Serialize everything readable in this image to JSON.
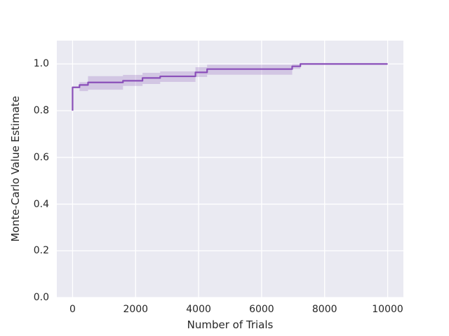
{
  "figure": {
    "background_color": "#ffffff"
  },
  "chart_data": {
    "type": "line",
    "title": "",
    "xlabel": "Number of Trials",
    "ylabel": "Monte-Carlo Value Estimate",
    "xlim": [
      -500,
      10500
    ],
    "ylim": [
      0,
      1.1
    ],
    "grid": true,
    "legend": false,
    "style": {
      "axes_background": "#eaeaf2",
      "grid_color": "#ffffff",
      "text_color": "#262626",
      "line_color": "#8a4fb9",
      "band_color": "#9467bd",
      "band_alpha": 0.28
    },
    "x_ticks": {
      "values": [
        0,
        2000,
        4000,
        6000,
        8000,
        10000
      ],
      "labels": [
        "0",
        "2000",
        "4000",
        "6000",
        "8000",
        "10000"
      ]
    },
    "y_ticks": {
      "values": [
        0.0,
        0.2,
        0.4,
        0.6,
        0.8,
        1.0
      ],
      "labels": [
        "0.0",
        "0.2",
        "0.4",
        "0.6",
        "0.8",
        "1.0"
      ]
    },
    "series": [
      {
        "name": "monte-carlo-value-estimate",
        "kind": "step-line",
        "points": [
          [
            0,
            0.8
          ],
          [
            0,
            0.9
          ],
          [
            220,
            0.9
          ],
          [
            220,
            0.91
          ],
          [
            490,
            0.91
          ],
          [
            490,
            0.921
          ],
          [
            1600,
            0.921
          ],
          [
            1600,
            0.928
          ],
          [
            2220,
            0.928
          ],
          [
            2220,
            0.94
          ],
          [
            2780,
            0.94
          ],
          [
            2780,
            0.947
          ],
          [
            3900,
            0.947
          ],
          [
            3900,
            0.964
          ],
          [
            4270,
            0.964
          ],
          [
            4270,
            0.978
          ],
          [
            6970,
            0.978
          ],
          [
            6970,
            0.99
          ],
          [
            7230,
            0.99
          ],
          [
            7230,
            1.0
          ],
          [
            10000,
            1.0
          ]
        ]
      },
      {
        "name": "confidence-band",
        "kind": "band",
        "upper": [
          [
            220,
            0.922
          ],
          [
            490,
            0.922
          ],
          [
            490,
            0.948
          ],
          [
            1600,
            0.948
          ],
          [
            1600,
            0.953
          ],
          [
            2220,
            0.953
          ],
          [
            2220,
            0.962
          ],
          [
            2780,
            0.962
          ],
          [
            2780,
            0.968
          ],
          [
            3900,
            0.968
          ],
          [
            3900,
            0.986
          ],
          [
            4270,
            0.986
          ],
          [
            4270,
            0.997
          ],
          [
            6970,
            0.997
          ],
          [
            6970,
            1.0
          ],
          [
            7230,
            1.0
          ]
        ],
        "lower": [
          [
            220,
            0.884
          ],
          [
            490,
            0.884
          ],
          [
            490,
            0.89
          ],
          [
            1600,
            0.89
          ],
          [
            1600,
            0.906
          ],
          [
            2220,
            0.906
          ],
          [
            2220,
            0.914
          ],
          [
            2780,
            0.914
          ],
          [
            2780,
            0.923
          ],
          [
            3900,
            0.923
          ],
          [
            3900,
            0.944
          ],
          [
            4270,
            0.944
          ],
          [
            4270,
            0.954
          ],
          [
            6970,
            0.954
          ],
          [
            6970,
            0.979
          ],
          [
            7230,
            0.979
          ],
          [
            7230,
            1.0
          ]
        ]
      }
    ]
  }
}
